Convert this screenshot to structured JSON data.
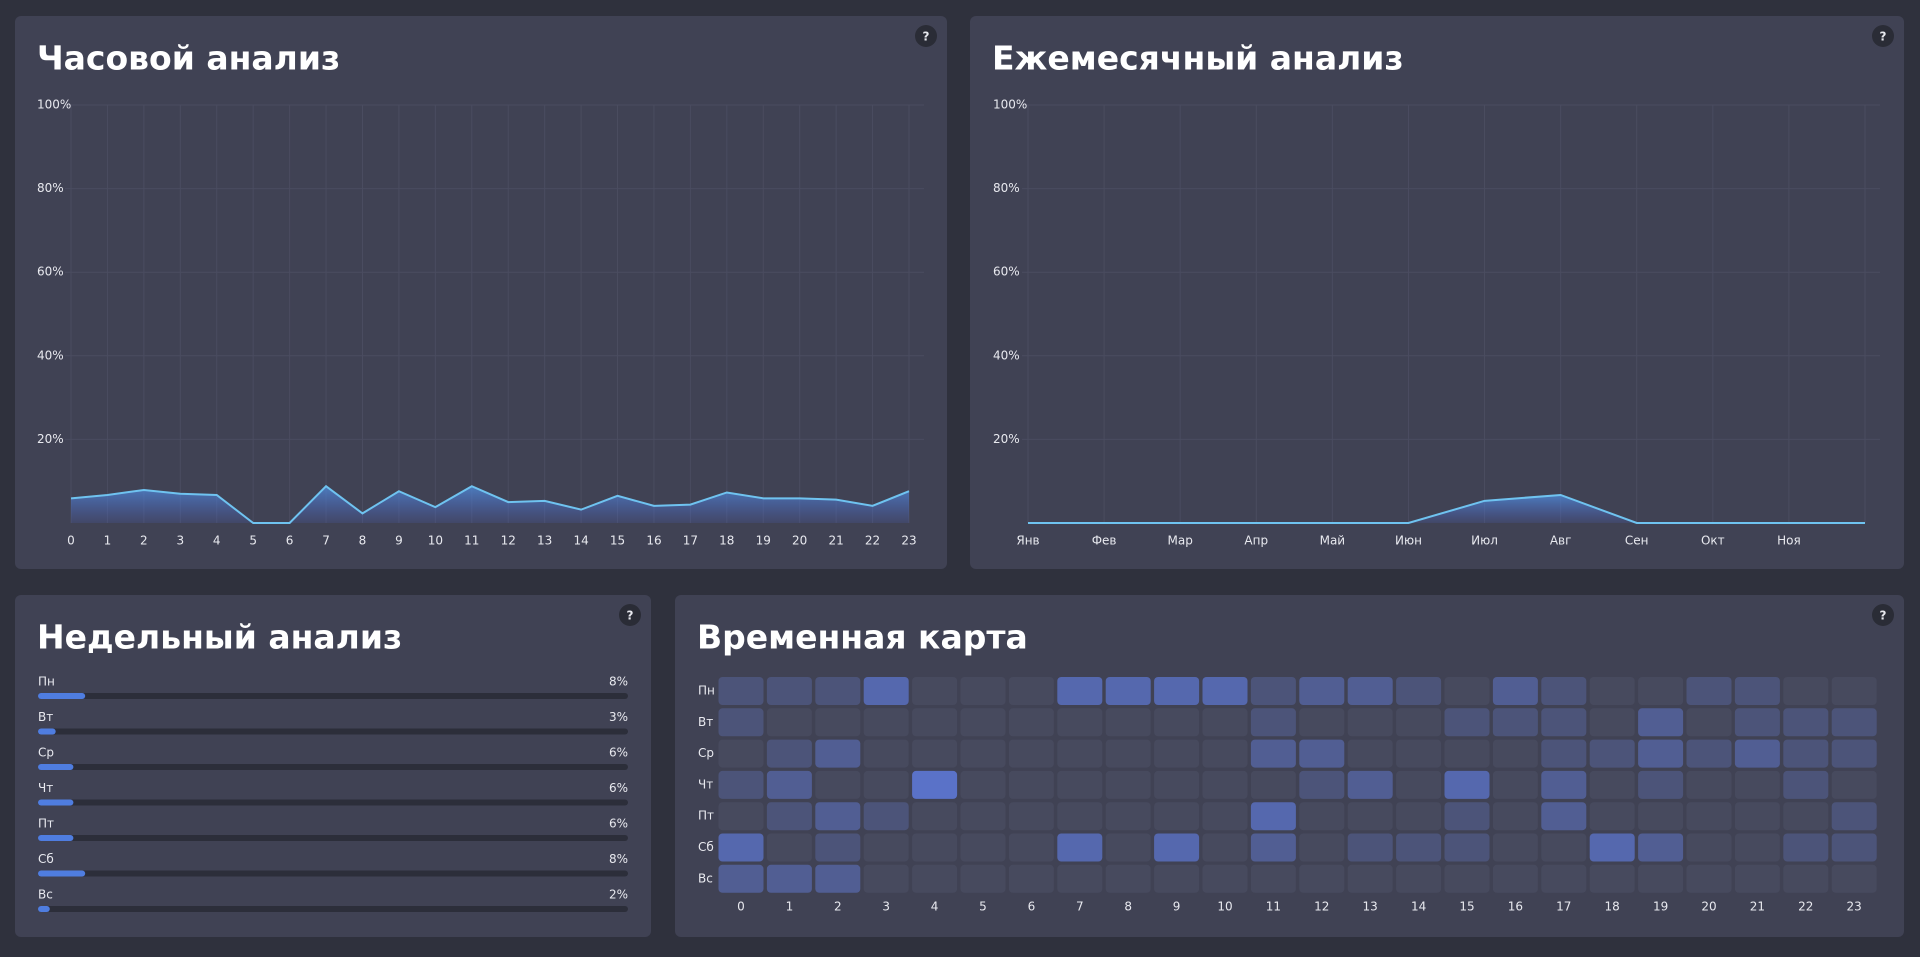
{
  "chart_data": [
    {
      "type": "line",
      "title": "Часовой анализ",
      "help": "?",
      "categories": [
        "0",
        "1",
        "2",
        "3",
        "4",
        "5",
        "6",
        "7",
        "8",
        "9",
        "10",
        "11",
        "12",
        "13",
        "14",
        "15",
        "16",
        "17",
        "18",
        "19",
        "20",
        "21",
        "22",
        "23"
      ],
      "series": [
        {
          "color": "#6fc3f0",
          "values": [
            5.9,
            6.7,
            7.9,
            7,
            6.7,
            0,
            0,
            8.8,
            2.3,
            7.6,
            3.8,
            8.8,
            5,
            5.3,
            3.2,
            6.5,
            4.1,
            4.4,
            7.3,
            5.9,
            5.9,
            5.6,
            4.1,
            7.6
          ]
        }
      ],
      "ylim": [
        0,
        100
      ],
      "yticks": [
        {
          "value": 20,
          "label": "20%"
        },
        {
          "value": 40,
          "label": "40%"
        },
        {
          "value": 60,
          "label": "60%"
        },
        {
          "value": 80,
          "label": "80%"
        },
        {
          "value": 100,
          "label": "100%"
        }
      ],
      "grid": true
    },
    {
      "type": "line",
      "title": "Ежемесячный анализ",
      "help": "?",
      "categories": [
        "Янв",
        "Фев",
        "Мар",
        "Апр",
        "Май",
        "Июн",
        "Июл",
        "Авг",
        "Сен",
        "Окт",
        "Ноя",
        null
      ],
      "series": [
        {
          "color": "#6fc3f0",
          "values": [
            0,
            0,
            0,
            0,
            0,
            0,
            5.3,
            6.7,
            0,
            0,
            0,
            0
          ]
        }
      ],
      "ylim": [
        0,
        100
      ],
      "yticks": [
        {
          "value": 20,
          "label": "20%"
        },
        {
          "value": 40,
          "label": "40%"
        },
        {
          "value": 60,
          "label": "60%"
        },
        {
          "value": 80,
          "label": "80%"
        },
        {
          "value": 100,
          "label": "100%"
        }
      ],
      "grid": true
    },
    {
      "type": "progress",
      "title": "Недельный анализ",
      "help": "?",
      "categories": [
        "Пн",
        "Вт",
        "Ср",
        "Чт",
        "Пт",
        "Сб",
        "Вс"
      ],
      "values": [
        8,
        3,
        6,
        6,
        6,
        8,
        2
      ],
      "value_labels": [
        "8%",
        "3%",
        "6%",
        "6%",
        "6%",
        "8%",
        "2%"
      ],
      "xlim": [
        0,
        100
      ],
      "color": "#4f7de0"
    },
    {
      "type": "heatmap",
      "title": "Временная карта",
      "help": "?",
      "rows": [
        "Пн",
        "Вт",
        "Ср",
        "Чт",
        "Пт",
        "Сб",
        "Вс"
      ],
      "columns": [
        "0",
        "1",
        "2",
        "3",
        "4",
        "5",
        "6",
        "7",
        "8",
        "9",
        "10",
        "11",
        "12",
        "13",
        "14",
        "15",
        "16",
        "17",
        "18",
        "19",
        "20",
        "21",
        "22",
        "23"
      ],
      "values": [
        [
          1,
          1,
          1,
          3,
          0,
          0,
          0,
          3,
          3,
          3,
          3,
          1,
          2,
          2,
          1,
          0,
          2,
          1,
          0,
          0,
          1,
          1,
          0,
          0
        ],
        [
          1,
          0,
          0,
          0,
          0,
          0,
          0,
          0,
          0,
          0,
          0,
          1,
          0,
          0,
          0,
          1,
          1,
          1,
          0,
          2,
          0,
          1,
          1,
          1
        ],
        [
          0,
          1,
          2,
          0,
          0,
          0,
          0,
          0,
          0,
          0,
          0,
          2,
          2,
          0,
          0,
          0,
          0,
          1,
          1,
          2,
          1,
          2,
          1,
          1
        ],
        [
          1,
          2,
          0,
          0,
          4,
          0,
          0,
          0,
          0,
          0,
          0,
          0,
          1,
          2,
          0,
          3,
          0,
          2,
          0,
          1,
          0,
          0,
          1,
          0
        ],
        [
          0,
          1,
          2,
          1,
          0,
          0,
          0,
          0,
          0,
          0,
          0,
          3,
          0,
          0,
          0,
          1,
          0,
          2,
          0,
          0,
          0,
          0,
          0,
          1
        ],
        [
          3,
          0,
          1,
          0,
          0,
          0,
          0,
          3,
          0,
          3,
          0,
          2,
          0,
          1,
          1,
          1,
          0,
          0,
          3,
          2,
          0,
          0,
          1,
          1
        ],
        [
          2,
          2,
          2,
          0,
          0,
          0,
          0,
          0,
          0,
          0,
          0,
          0,
          0,
          0,
          0,
          0,
          0,
          0,
          0,
          0,
          0,
          0,
          0,
          0
        ]
      ],
      "color": "#5a72c8"
    }
  ]
}
